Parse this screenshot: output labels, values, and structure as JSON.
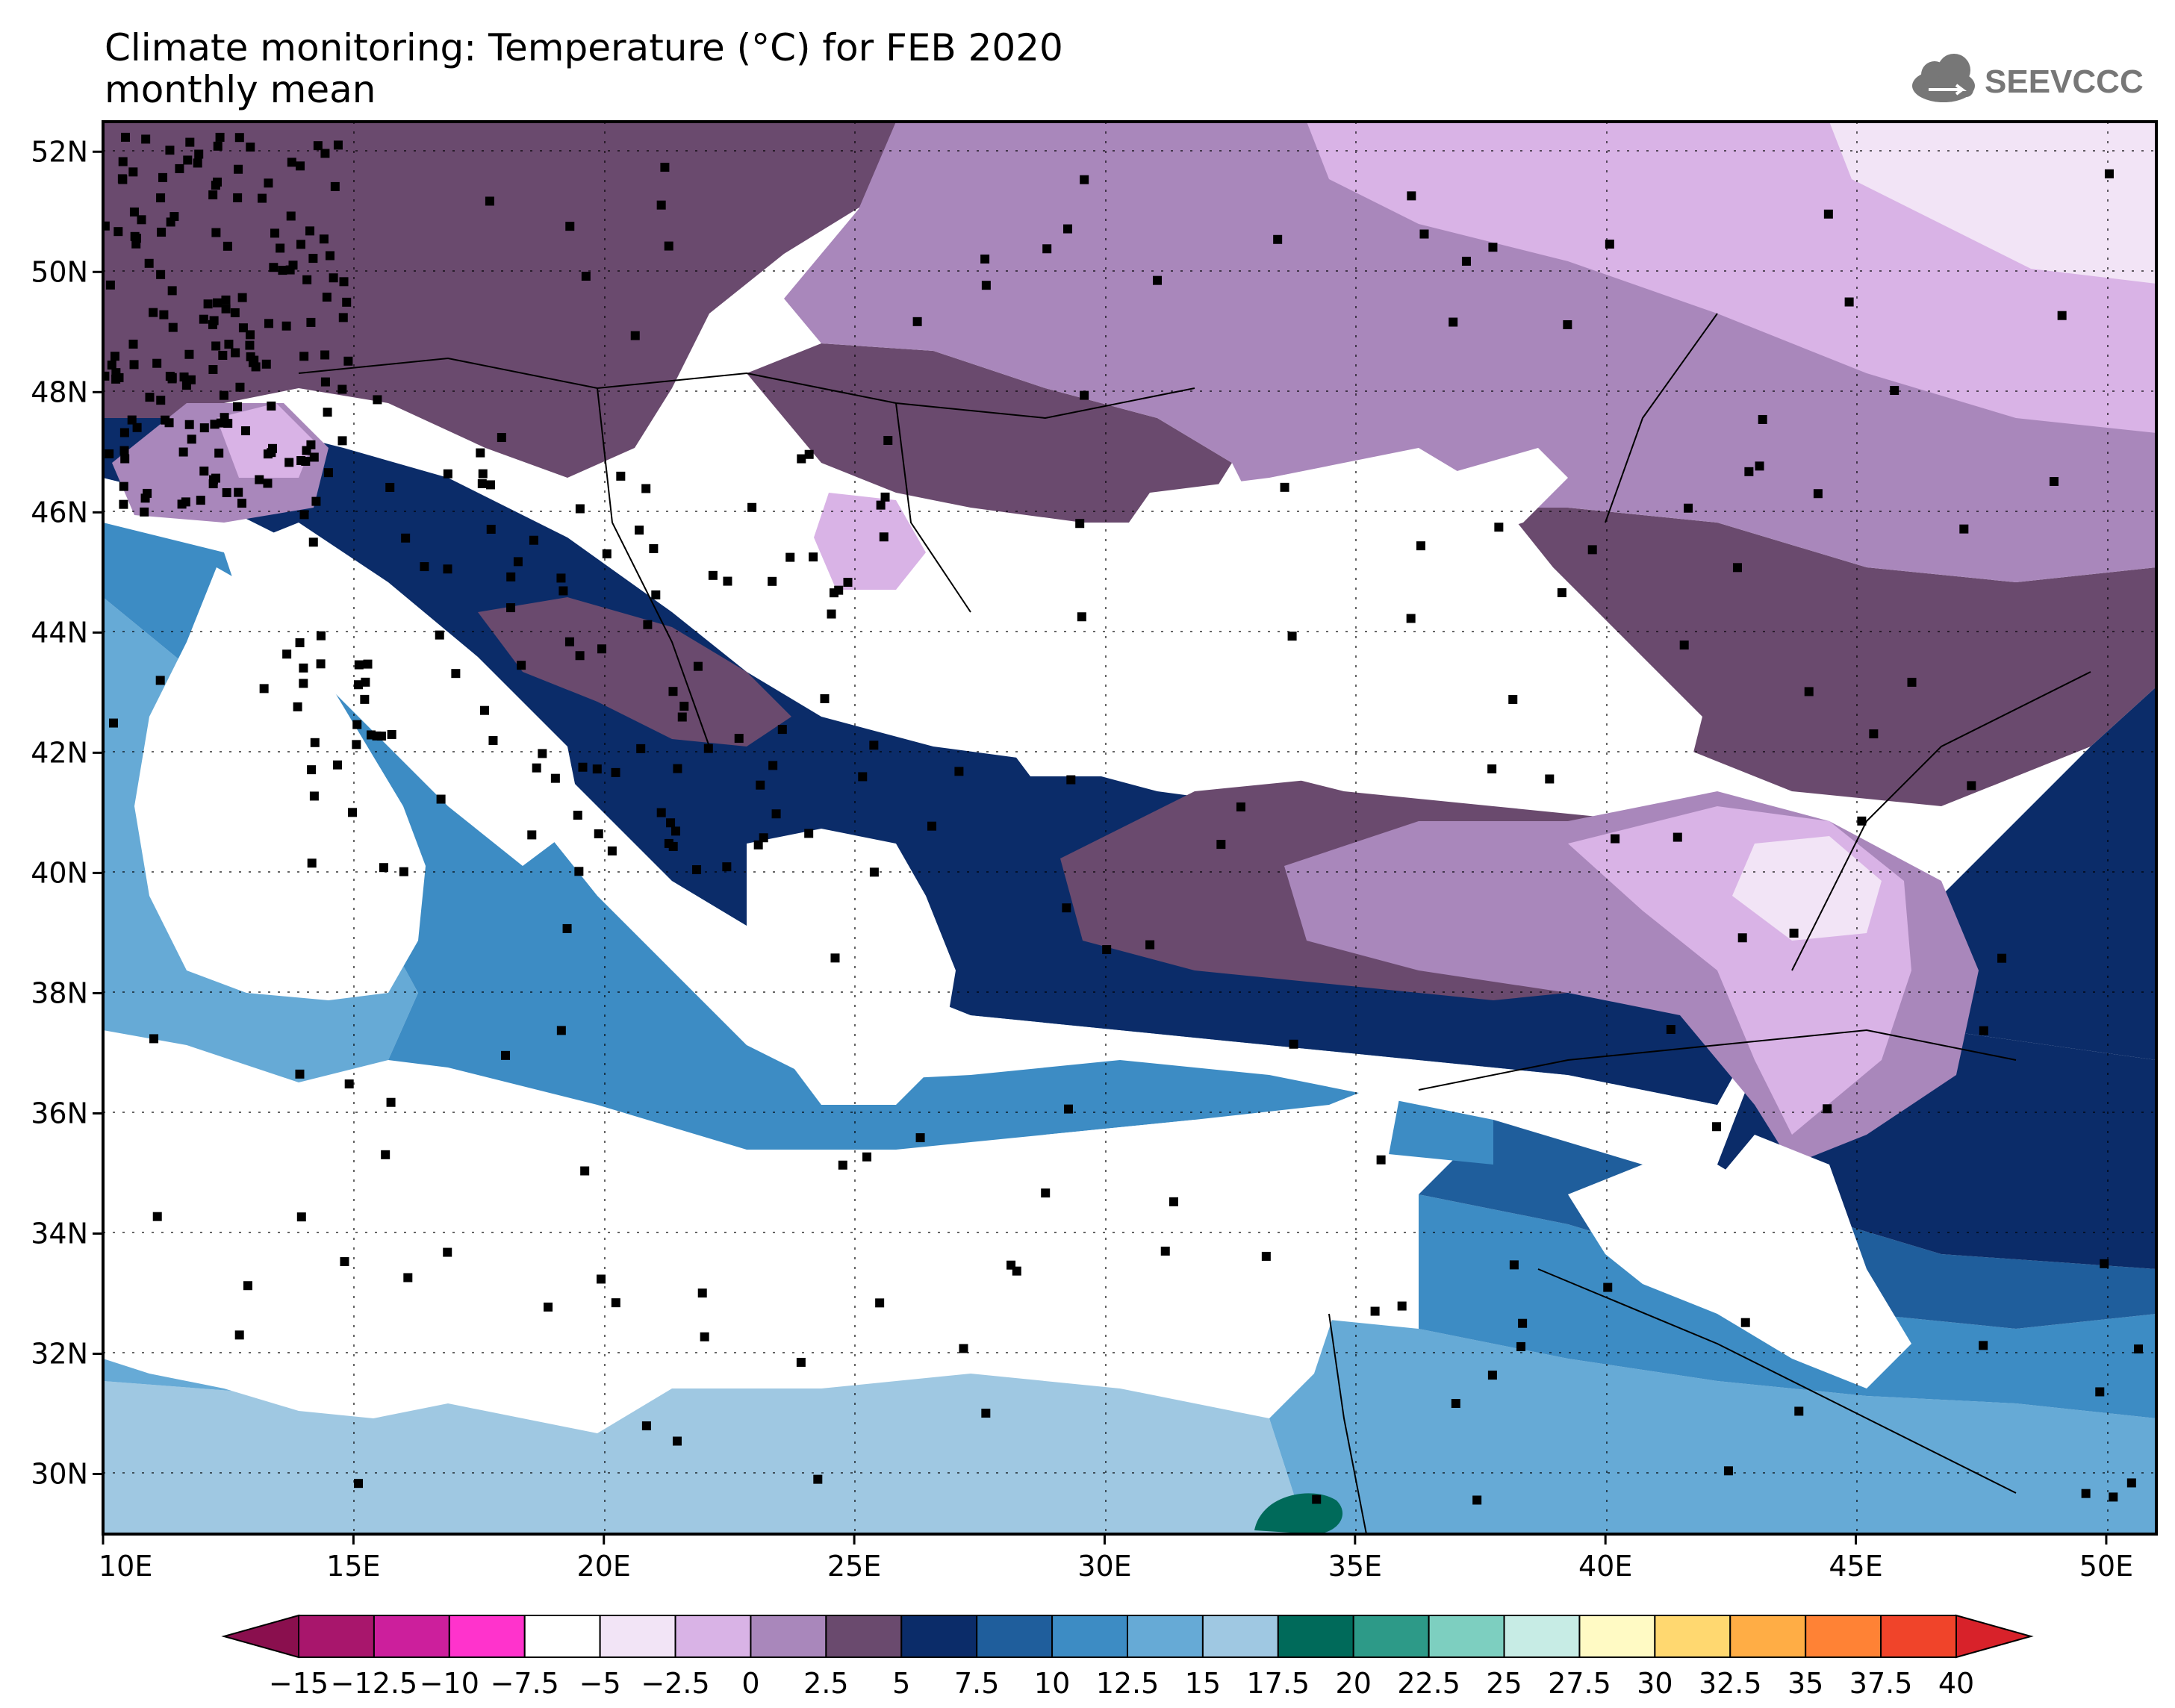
{
  "header": {
    "title_line1": "Climate monitoring: Temperature (°C) for FEB 2020",
    "title_line2": "monthly mean",
    "logo_text": "SEEVCCC"
  },
  "map": {
    "lon_range": [
      10,
      51
    ],
    "lat_range": [
      29,
      52.5
    ],
    "lat_ticks": [
      "52N",
      "50N",
      "48N",
      "46N",
      "44N",
      "42N",
      "40N",
      "38N",
      "36N",
      "34N",
      "32N",
      "30N"
    ],
    "lon_ticks": [
      "10E",
      "15E",
      "20E",
      "25E",
      "30E",
      "35E",
      "40E",
      "45E",
      "50E"
    ],
    "gridlines": "dotted",
    "station_markers": "black squares"
  },
  "colorbar": {
    "labels": [
      "−15",
      "−12.5",
      "−10",
      "−7.5",
      "−5",
      "−2.5",
      "0",
      "2.5",
      "5",
      "7.5",
      "10",
      "12.5",
      "15",
      "17.5",
      "20",
      "22.5",
      "25",
      "27.5",
      "30",
      "32.5",
      "35",
      "37.5",
      "40"
    ],
    "colors": [
      "#8a0f4e",
      "#a8166c",
      "#cc1f9c",
      "#ff33cc",
      "#ffffff",
      "#f2e4f6",
      "#d9b3e6",
      "#a987bb",
      "#6a4a6e",
      "#0b2c69",
      "#1f5e9c",
      "#3d8cc4",
      "#66aad6",
      "#9fc8e2",
      "#006a5a",
      "#2d9a88",
      "#7dcfc0",
      "#c7ece5",
      "#fffac4",
      "#ffd870",
      "#ffad45",
      "#ff8235",
      "#f0442a",
      "#d8222a"
    ]
  }
}
